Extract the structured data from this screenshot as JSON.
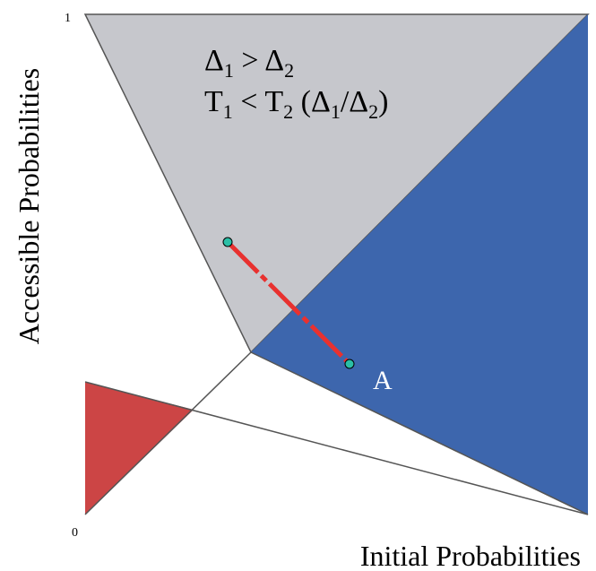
{
  "axes": {
    "x_label": "Initial Probabilities",
    "y_label": "Accessible Probabilities",
    "y_tick_top": "1",
    "origin_tick": "0"
  },
  "annotation": {
    "line1": {
      "delta": "Δ",
      "sub1": "1",
      "op": " > ",
      "delta2": "Δ",
      "sub2": "2"
    },
    "line2": {
      "t1": "T",
      "t1_sub": "1",
      "op": " < ",
      "t2": "T",
      "t2_sub": "2",
      "paren_open": " (",
      "d1": "Δ",
      "d1_sub": "1",
      "slash": "/",
      "d2": "Δ",
      "d2_sub": "2",
      "paren_close": ")"
    }
  },
  "point_label": "A",
  "colors": {
    "gray_region": "#c6c7cc",
    "blue_region": "#3d66ad",
    "red_region": "#cc4545",
    "trajectory": "#e8312f",
    "endpoint": "#2bbfa6",
    "lines": "#555555"
  }
}
